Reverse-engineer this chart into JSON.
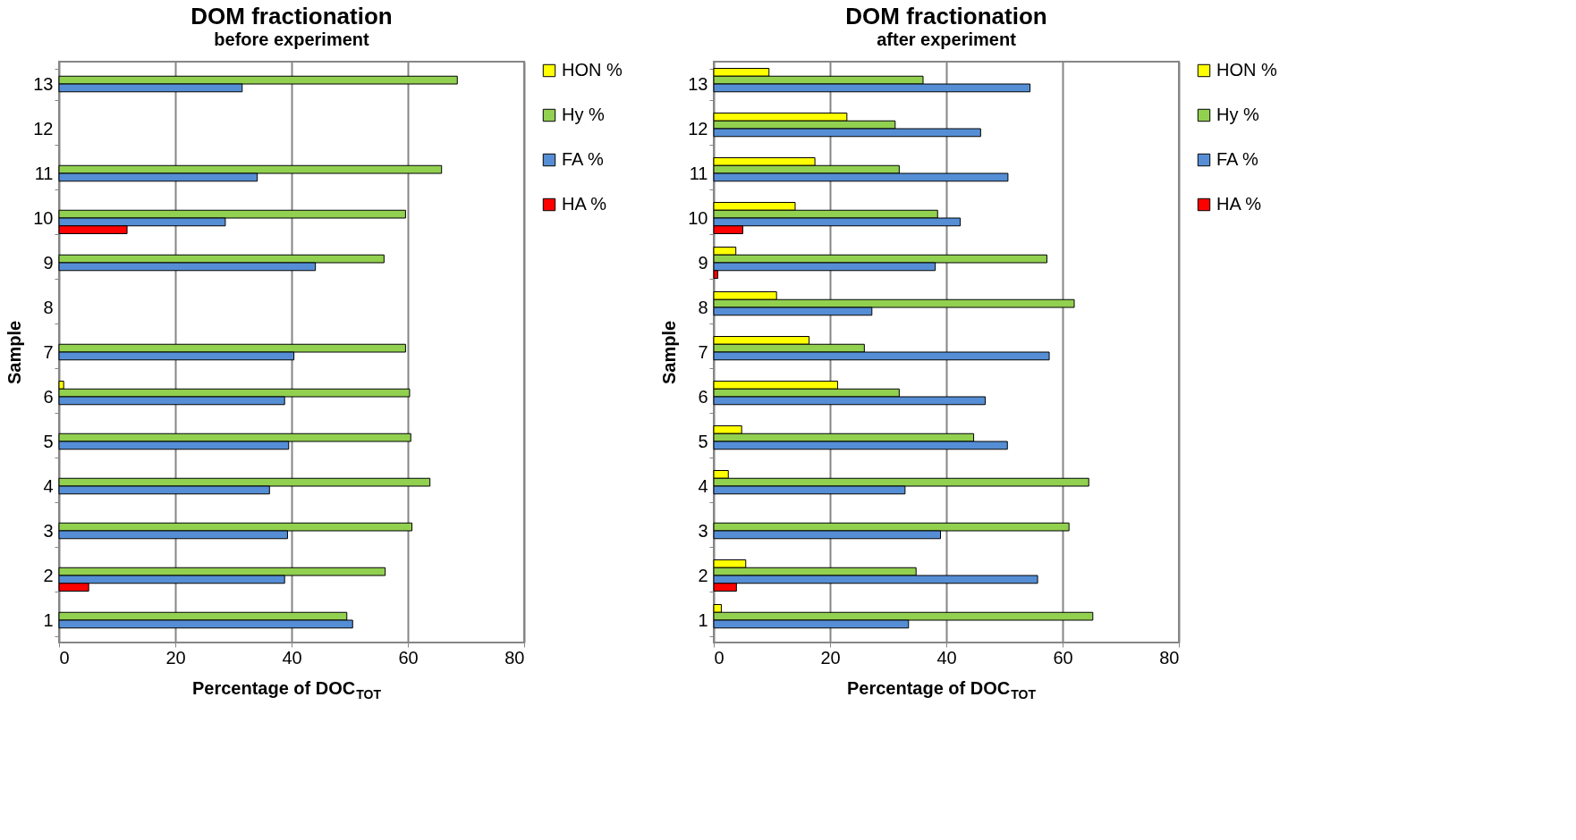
{
  "chart_data": [
    {
      "type": "bar",
      "orientation": "horizontal",
      "title": "DOM fractionation",
      "subtitle": "before experiment",
      "xlabel": "Percentage of DOC$_{TOT}$",
      "ylabel": "Sample",
      "categories": [
        "13",
        "12",
        "11",
        "10",
        "9",
        "8",
        "7",
        "6",
        "5",
        "4",
        "3",
        "2",
        "1"
      ],
      "series": [
        {
          "name": "HON %",
          "color": "#ffff00",
          "values": [
            null,
            null,
            null,
            null,
            null,
            null,
            null,
            0.8,
            null,
            null,
            null,
            null,
            null
          ]
        },
        {
          "name": "Hy %",
          "color": "#92d050",
          "values": [
            68.5,
            null,
            65.8,
            59.6,
            55.9,
            null,
            59.6,
            60.3,
            60.5,
            63.8,
            60.7,
            56.1,
            49.5
          ]
        },
        {
          "name": "FA %",
          "color": "#558ed5",
          "values": [
            31.5,
            null,
            34.1,
            28.6,
            44.1,
            null,
            40.4,
            38.8,
            39.5,
            36.2,
            39.3,
            38.8,
            50.5
          ]
        },
        {
          "name": "HA %",
          "color": "#ff0000",
          "values": [
            null,
            null,
            null,
            11.7,
            null,
            null,
            null,
            null,
            null,
            null,
            null,
            5.1,
            null
          ]
        }
      ],
      "xlim": [
        0,
        80
      ],
      "xticks": [
        0,
        20,
        40,
        60,
        80
      ],
      "grid": "x",
      "legend": "right"
    },
    {
      "type": "bar",
      "orientation": "horizontal",
      "title": "DOM fractionation",
      "subtitle": "after experiment",
      "xlabel": "Percentage of DOC$_{TOT}$",
      "ylabel": "Sample",
      "categories": [
        "13",
        "12",
        "11",
        "10",
        "9",
        "8",
        "7",
        "6",
        "5",
        "4",
        "3",
        "2",
        "1"
      ],
      "series": [
        {
          "name": "HON %",
          "color": "#ffff00",
          "values": [
            9.5,
            22.9,
            17.4,
            14.0,
            3.8,
            10.8,
            16.4,
            21.3,
            4.8,
            2.5,
            null,
            5.5,
            1.3
          ]
        },
        {
          "name": "Hy %",
          "color": "#92d050",
          "values": [
            36.0,
            31.2,
            31.9,
            38.5,
            57.3,
            62.0,
            25.9,
            31.9,
            44.7,
            64.5,
            61.1,
            34.8,
            65.2
          ]
        },
        {
          "name": "FA %",
          "color": "#558ed5",
          "values": [
            54.4,
            45.9,
            50.6,
            42.4,
            38.1,
            27.2,
            57.7,
            46.7,
            50.5,
            32.9,
            39.0,
            55.7,
            33.5
          ]
        },
        {
          "name": "HA %",
          "color": "#ff0000",
          "values": [
            null,
            null,
            null,
            5.0,
            0.7,
            null,
            null,
            null,
            null,
            null,
            null,
            3.9,
            null
          ]
        }
      ],
      "xlim": [
        0,
        80
      ],
      "xticks": [
        0,
        20,
        40,
        60,
        80
      ],
      "grid": "x",
      "legend": "right"
    }
  ]
}
